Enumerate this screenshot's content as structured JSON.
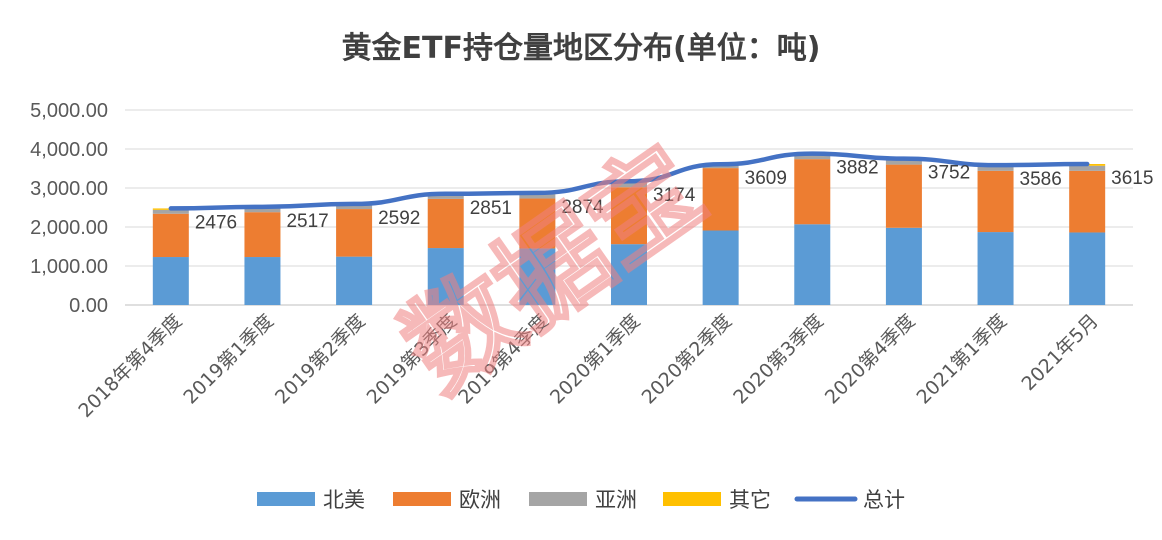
{
  "watermark": "数据宝",
  "colors": {
    "north_america": "#5B9BD5",
    "europe": "#ED7D31",
    "asia": "#A5A5A5",
    "other": "#FFC000",
    "total": "#4472C4",
    "grid": "#D9D9D9",
    "axis": "#BFBFBF"
  },
  "chart_data": {
    "type": "bar",
    "stacked": true,
    "title": "黄金ETF持仓量地区分布(单位：吨)",
    "categories": [
      "2018年第4季度",
      "2019第1季度",
      "2019第2季度",
      "2019第3季度",
      "2019第4季度",
      "2020第1季度",
      "2020第2季度",
      "2020第3季度",
      "2020第4季度",
      "2021第1季度",
      "2021年5月"
    ],
    "ylim": [
      0,
      5000
    ],
    "yticks": [
      0,
      1000,
      2000,
      3000,
      4000,
      5000
    ],
    "ytick_labels": [
      "0.00",
      "1,000.00",
      "2,000.00",
      "3,000.00",
      "4,000.00",
      "5,000.00"
    ],
    "grid": true,
    "legend_position": "bottom",
    "series": [
      {
        "name": "北美",
        "color_key": "north_america",
        "values": [
          1230,
          1230,
          1240,
          1460,
          1450,
          1560,
          1910,
          2070,
          1980,
          1870,
          1860
        ]
      },
      {
        "name": "欧洲",
        "color_key": "europe",
        "values": [
          1110,
          1150,
          1220,
          1260,
          1280,
          1460,
          1600,
          1670,
          1620,
          1570,
          1580
        ]
      },
      {
        "name": "亚洲",
        "color_key": "asia",
        "values": [
          100,
          110,
          100,
          100,
          110,
          120,
          70,
          110,
          110,
          110,
          130
        ]
      },
      {
        "name": "其它",
        "color_key": "other",
        "values": [
          36,
          27,
          32,
          31,
          34,
          34,
          29,
          32,
          42,
          36,
          45
        ]
      },
      {
        "name": "总计",
        "color_key": "total",
        "type": "line",
        "values": [
          2476,
          2517,
          2592,
          2851,
          2874,
          3174,
          3609,
          3882,
          3752,
          3586,
          3615
        ],
        "data_labels": [
          "2476",
          "2517",
          "2592",
          "2851",
          "2874",
          "3174",
          "3609",
          "3882",
          "3752",
          "3586",
          "3615"
        ]
      }
    ]
  }
}
